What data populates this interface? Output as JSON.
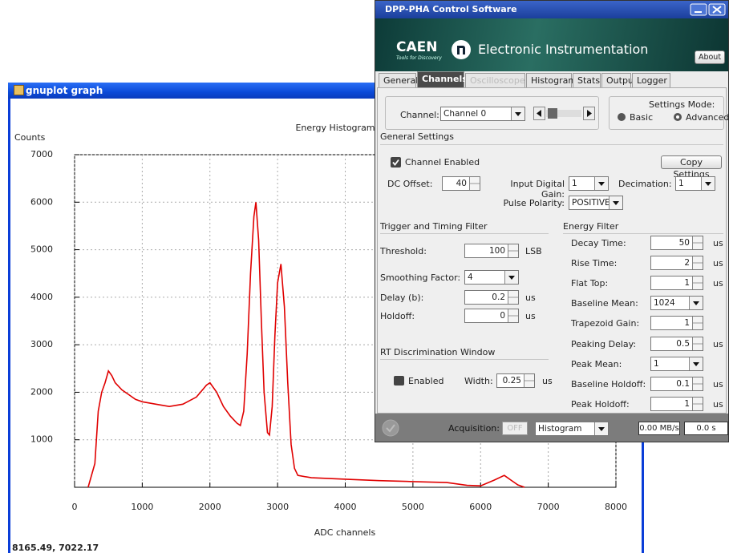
{
  "plot_window": {
    "title": "gnuplot graph",
    "status": "8165.49, 7022.17"
  },
  "chart_data": {
    "type": "line",
    "title": "Energy Histogram",
    "x_label": "ADC channels",
    "y_label": "Counts",
    "xlim": [
      0,
      8000
    ],
    "ylim": [
      0,
      7000
    ],
    "xticks": [
      0,
      1000,
      2000,
      3000,
      4000,
      5000,
      6000,
      7000,
      8000
    ],
    "yticks": [
      1000,
      2000,
      3000,
      4000,
      5000,
      6000,
      7000
    ],
    "grid": true,
    "x": [
      200,
      300,
      350,
      400,
      450,
      500,
      550,
      600,
      700,
      800,
      900,
      1000,
      1200,
      1400,
      1600,
      1800,
      1950,
      2000,
      2100,
      2200,
      2300,
      2400,
      2450,
      2500,
      2550,
      2600,
      2650,
      2680,
      2720,
      2760,
      2800,
      2850,
      2880,
      2920,
      2960,
      3000,
      3050,
      3100,
      3150,
      3200,
      3250,
      3300,
      3500,
      4000,
      4500,
      5000,
      5500,
      5800,
      6000,
      6200,
      6350,
      6450,
      6550,
      6650
    ],
    "series": [
      {
        "color": "#e00000",
        "values": [
          0,
          500,
          1600,
          2000,
          2200,
          2450,
          2350,
          2200,
          2050,
          1950,
          1850,
          1800,
          1750,
          1700,
          1750,
          1900,
          2150,
          2200,
          2000,
          1700,
          1500,
          1350,
          1300,
          1600,
          2800,
          4500,
          5700,
          6000,
          5200,
          3500,
          2000,
          1150,
          1100,
          1700,
          3200,
          4300,
          4700,
          3800,
          2200,
          900,
          400,
          250,
          200,
          170,
          140,
          120,
          100,
          40,
          30,
          150,
          250,
          150,
          50,
          0
        ]
      }
    ]
  },
  "control_window": {
    "title": "DPP-PHA Control Software",
    "banner": {
      "brand": "CAEN",
      "tagline": "Tools for Discovery",
      "subtitle": "Electronic Instrumentation",
      "about": "About"
    },
    "tabs": [
      "General",
      "Channels",
      "Oscilloscope",
      "Histogram",
      "Stats",
      "Output",
      "Logger"
    ],
    "channel": {
      "label": "Channel:",
      "value": "Channel 0"
    },
    "settings_mode": {
      "title": "Settings Mode:",
      "options": [
        "Basic",
        "Advanced"
      ]
    },
    "general": {
      "heading": "General Settings",
      "enabled": "Channel Enabled",
      "copy": "Copy Settings",
      "dc_offset": {
        "label": "DC Offset:",
        "value": 40
      },
      "gain": {
        "label": "Input Digital Gain:",
        "value": 1
      },
      "decimation": {
        "label": "Decimation:",
        "value": 1
      },
      "polarity": {
        "label": "Pulse Polarity:",
        "value": "POSITIVE"
      }
    },
    "trigger": {
      "heading": "Trigger and Timing Filter",
      "rows": [
        {
          "label": "Threshold:",
          "value": 100,
          "unit": "LSB"
        },
        {
          "label": "Smoothing Factor:",
          "value": 4
        },
        {
          "label": "Delay (b):",
          "value": 0.2,
          "unit": "us"
        },
        {
          "label": "Holdoff:",
          "value": 0,
          "unit": "us"
        }
      ]
    },
    "rt": {
      "heading": "RT Discrimination Window",
      "enabled": "Enabled",
      "width_label": "Width:",
      "width": 0.25,
      "unit": "us"
    },
    "energy": {
      "heading": "Energy Filter",
      "rows": [
        {
          "label": "Decay Time:",
          "value": 50,
          "unit": "us"
        },
        {
          "label": "Rise Time:",
          "value": 2,
          "unit": "us"
        },
        {
          "label": "Flat Top:",
          "value": 1,
          "unit": "us"
        },
        {
          "label": "Baseline Mean:",
          "value": 1024
        },
        {
          "label": "Trapezoid Gain:",
          "value": 1
        },
        {
          "label": "Peaking Delay:",
          "value": 0.5,
          "unit": "us"
        },
        {
          "label": "Peak Mean:",
          "value": 1
        },
        {
          "label": "Baseline Holdoff:",
          "value": 0.1,
          "unit": "us"
        },
        {
          "label": "Peak Holdoff:",
          "value": 1,
          "unit": "us"
        }
      ]
    },
    "status": {
      "acquisition": "Acquisition:",
      "state": "OFF",
      "mode": "Histogram",
      "rate": "0.00 MB/s",
      "time": "0.0 s"
    }
  }
}
